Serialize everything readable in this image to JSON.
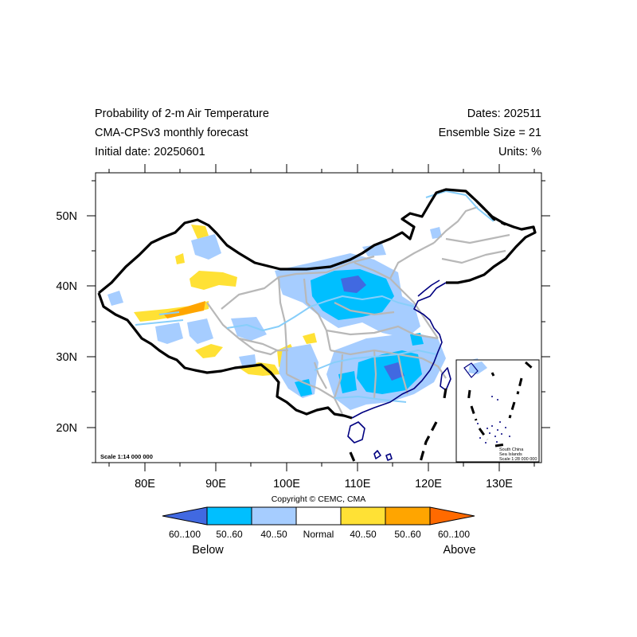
{
  "header": {
    "title": "Probability of 2-m Air Temperature",
    "model": "CMA-CPSv3 monthly forecast",
    "initial_date": "Initial date: 20250601",
    "dates": "Dates: 202511",
    "ensemble": "Ensemble Size = 21",
    "units": "Units: %"
  },
  "map": {
    "lon_ticks": [
      "80E",
      "90E",
      "100E",
      "110E",
      "120E",
      "130E"
    ],
    "lat_ticks": [
      "50N",
      "40N",
      "30N",
      "20N"
    ],
    "lon_range": [
      73,
      135
    ],
    "lat_range": [
      15,
      56
    ],
    "scale_main": "Scale 1:14 000 000",
    "copyright": "Copyright © CEMC, CMA",
    "inset": {
      "line1": "South China",
      "line2": "Sea Islands",
      "scale": "Scale 1:28 000 000"
    }
  },
  "legend": {
    "labels": [
      "60..100",
      "50..60",
      "40..50",
      "Normal",
      "40..50",
      "50..60",
      "60..100"
    ],
    "colors": [
      "#4169e1",
      "#00bfff",
      "#a6cdff",
      "#ffffff",
      "#ffe135",
      "#ffa500",
      "#ff6a00"
    ],
    "below": "Below",
    "above": "Above"
  }
}
